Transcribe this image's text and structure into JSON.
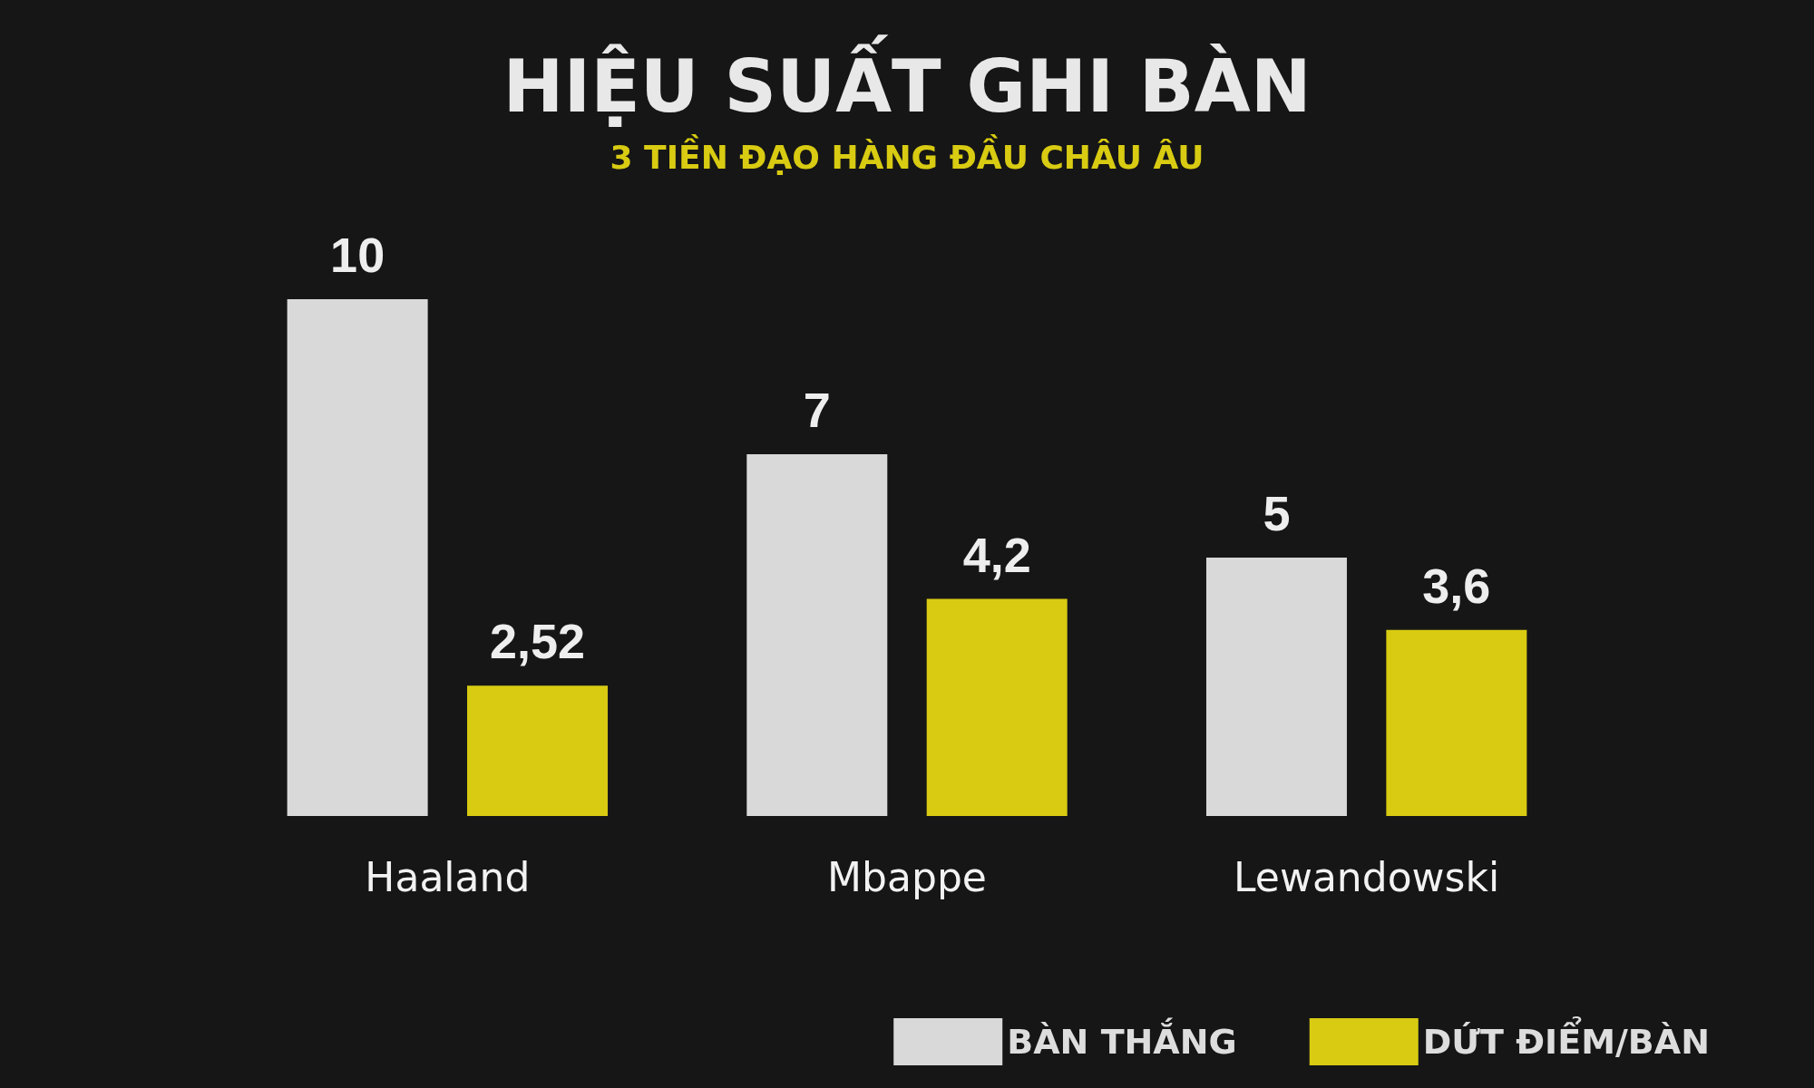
{
  "chart_data": {
    "type": "bar",
    "title": "HIỆU SUẤT GHI BÀN",
    "subtitle": "3 TIỀN ĐẠO HÀNG ĐẦU CHÂU ÂU",
    "categories": [
      "Haaland",
      "Mbappe",
      "Lewandowski"
    ],
    "series": [
      {
        "name": "BÀN THẮNG",
        "color": "#d9d9d9",
        "values": [
          10,
          7,
          5
        ],
        "value_labels": [
          "10",
          "7",
          "5"
        ]
      },
      {
        "name": "DỨT ĐIỂM/BÀN",
        "color": "#d8cb12",
        "values": [
          2.52,
          4.2,
          3.6
        ],
        "value_labels": [
          "2,52",
          "4,2",
          "3,6"
        ]
      }
    ],
    "legend": "bottom right"
  }
}
